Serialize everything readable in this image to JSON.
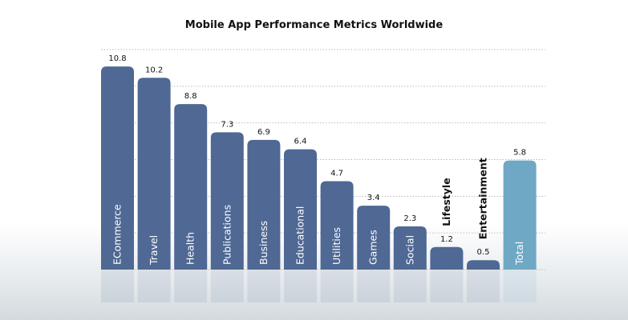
{
  "chart_data": {
    "type": "bar",
    "title": "Mobile App Performance Metrics Worldwide",
    "categories": [
      "ECommerce",
      "Travel",
      "Health",
      "Publications",
      "Business",
      "Educational",
      "Utilities",
      "Games",
      "Social",
      "Lifestyle",
      "Entertainment",
      "Total"
    ],
    "values": [
      10.8,
      10.2,
      8.8,
      7.3,
      6.9,
      6.4,
      4.7,
      3.4,
      2.3,
      1.2,
      0.5,
      5.8
    ],
    "value_labels": [
      "10.8",
      "10.2",
      "8.8",
      "7.3",
      "6.9",
      "6.4",
      "4.7",
      "3.4",
      "2.3",
      "1.2",
      "0.5",
      "5.8"
    ],
    "colors": {
      "bar": "#4f6894",
      "total": "#6fa8c4"
    },
    "grid": true,
    "ylim": [
      0,
      11.7
    ],
    "xlabel": "",
    "ylabel": ""
  }
}
